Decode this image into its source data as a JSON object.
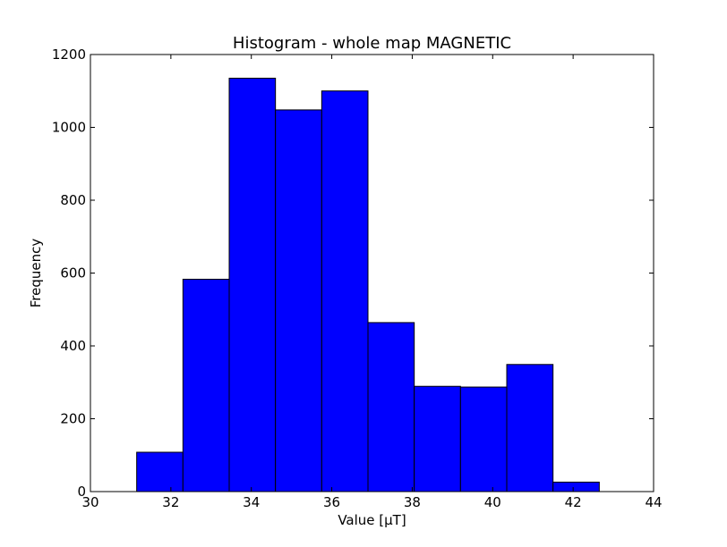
{
  "chart_data": {
    "type": "bar",
    "title": "Histogram - whole map MAGNETIC",
    "xlabel": "Value [µT]",
    "ylabel": "Frequency",
    "xlim": [
      30,
      44
    ],
    "ylim": [
      0,
      1200
    ],
    "xticks": [
      30,
      32,
      34,
      36,
      38,
      40,
      42,
      44
    ],
    "yticks": [
      0,
      200,
      400,
      600,
      800,
      1000,
      1200
    ],
    "bin_edges": [
      31.15,
      32.3,
      33.45,
      34.6,
      35.75,
      36.9,
      38.05,
      39.2,
      40.35,
      41.5,
      42.65
    ],
    "values": [
      108,
      583,
      1135,
      1048,
      1100,
      464,
      289,
      287,
      349,
      26
    ],
    "bar_color": "#0000ff",
    "edge_color": "#000000",
    "grid": false,
    "legend": "none"
  }
}
